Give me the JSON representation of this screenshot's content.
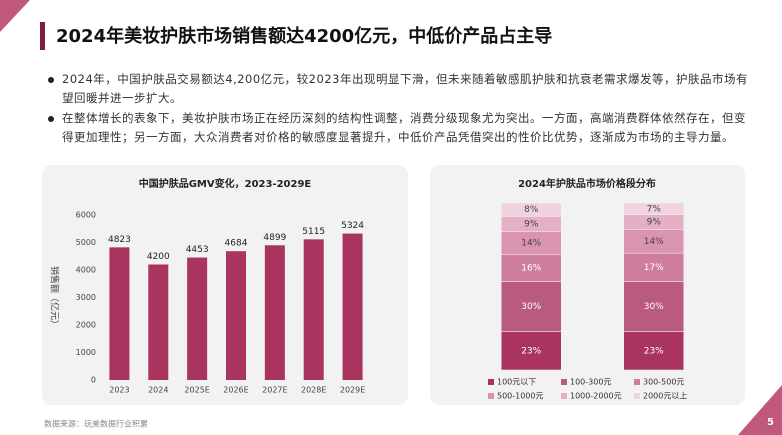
{
  "header": {
    "title": "2024年美妆护肤市场销售额达4200亿元，中低价产品占主导"
  },
  "bullets": [
    "2024年，中国护肤品交易额达4,200亿元，较2023年出现明显下滑，但未来随着敏感肌护肤和抗衰老需求爆发等，护肤品市场有望回暖并进一步扩大。",
    "在整体增长的表象下，美妆护肤市场正在经历深刻的结构性调整，消费分级现象尤为突出。一方面，高端消费群体依然存在，但变得更加理性；另一方面，大众消费者对价格的敏感度显著提升，中低价产品凭借突出的性价比优势，逐渐成为市场的主导力量。"
  ],
  "chart_data": [
    {
      "type": "bar",
      "title": "中国护肤品GMV变化，2023-2029E",
      "y_label": "销售额（亿元）",
      "categories": [
        "2023",
        "2024",
        "2025E",
        "2026E",
        "2027E",
        "2028E",
        "2029E"
      ],
      "values": [
        4823,
        4200,
        4453,
        4684,
        4899,
        5115,
        5324
      ],
      "color": "#a8345f",
      "ylim": [
        0,
        6000
      ],
      "yticks": [
        0,
        1000,
        2000,
        3000,
        4000,
        5000,
        6000
      ],
      "grid": false
    },
    {
      "type": "stacked_bar",
      "title": "2024年护肤品市场价格段分布",
      "categories": [
        null,
        null
      ],
      "ylim": [
        0,
        100
      ],
      "series": [
        {
          "name": "100元以下",
          "color": "#a8345f",
          "values": [
            23,
            23
          ],
          "value_labels": [
            "23%",
            "23%"
          ]
        },
        {
          "name": "100-300元",
          "color": "#bb5a7f",
          "values": [
            30,
            30
          ],
          "value_labels": [
            "30%",
            "30%"
          ]
        },
        {
          "name": "300-500元",
          "color": "#cf7d9c",
          "values": [
            16,
            17
          ],
          "value_labels": [
            "16%",
            "17%"
          ]
        },
        {
          "name": "500-1000元",
          "color": "#da93b0",
          "values": [
            14,
            14
          ],
          "value_labels": [
            "14%",
            "14%"
          ]
        },
        {
          "name": "1000-2000元",
          "color": "#e5afc5",
          "values": [
            9,
            9
          ],
          "value_labels": [
            "9%",
            "9%"
          ]
        },
        {
          "name": "2000元以上",
          "color": "#f0d3de",
          "values": [
            8,
            7
          ],
          "value_labels": [
            "8%",
            "7%"
          ]
        }
      ]
    }
  ],
  "source": "数据来源：玩美数据行业积累",
  "page": "5"
}
